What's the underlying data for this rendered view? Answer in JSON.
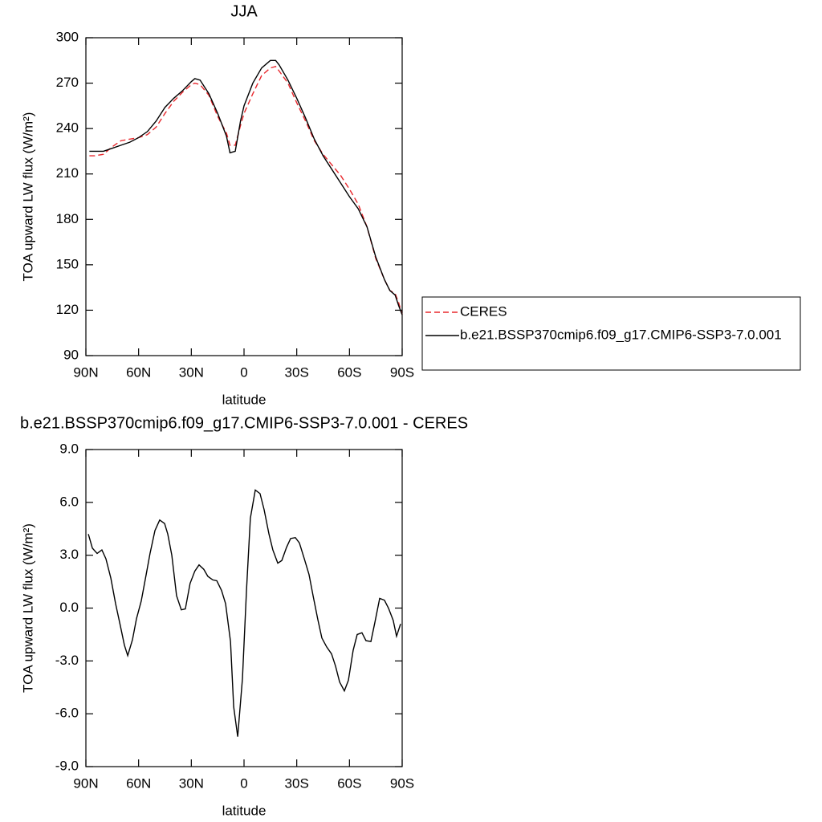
{
  "chart_data": [
    {
      "type": "line",
      "title": "JJA",
      "xlabel": "latitude",
      "ylabel": "TOA upward LW flux (W/m²)",
      "xlim": [
        90,
        -90
      ],
      "xticks": [
        {
          "value": 90,
          "label": "90N"
        },
        {
          "value": 60,
          "label": "60N"
        },
        {
          "value": 30,
          "label": "30N"
        },
        0,
        {
          "value": -30,
          "label": "30S"
        },
        {
          "value": -60,
          "label": "60S"
        },
        {
          "value": -90,
          "label": "90S"
        }
      ],
      "ylim": [
        90,
        300
      ],
      "yticks": [
        90,
        120,
        150,
        180,
        210,
        240,
        270,
        300
      ],
      "legend": "outside-right",
      "x": [
        88,
        85,
        80,
        75,
        70,
        65,
        60,
        55,
        50,
        45,
        40,
        35,
        30,
        28,
        25,
        20,
        15,
        10,
        8,
        5,
        2,
        0,
        -5,
        -10,
        -15,
        -18,
        -20,
        -25,
        -30,
        -35,
        -40,
        -45,
        -50,
        -55,
        -60,
        -65,
        -70,
        -75,
        -80,
        -83,
        -86,
        -88,
        -90
      ],
      "series": [
        {
          "name": "CERES",
          "color": "#e8282d",
          "line_style": "dashed",
          "values": [
            222,
            222,
            223,
            228,
            232,
            233,
            234,
            236,
            241,
            250,
            258,
            264,
            269,
            270,
            269,
            262,
            248,
            237,
            229,
            229,
            242,
            250,
            263,
            275,
            280,
            281,
            278,
            270,
            257,
            245,
            232,
            223,
            216,
            209,
            200,
            190,
            175,
            154,
            140,
            133,
            131,
            125,
            117
          ]
        },
        {
          "name": "b.e21.BSSP370cmip6.f09_g17.CMIP6-SSP3-7.0.001",
          "color": "#000000",
          "line_style": "solid",
          "values": [
            225,
            225,
            225,
            227,
            229,
            231,
            234,
            238,
            245,
            254,
            260,
            265,
            271,
            273,
            272,
            263,
            250,
            235,
            224,
            225,
            245,
            255,
            270,
            280,
            285,
            285,
            282,
            272,
            260,
            247,
            233,
            222,
            213,
            204,
            195,
            187,
            175,
            155,
            140,
            133,
            130,
            123,
            117
          ]
        }
      ]
    },
    {
      "type": "line",
      "title": "b.e21.BSSP370cmip6.f09_g17.CMIP6-SSP3-7.0.001 - CERES",
      "xlabel": "latitude",
      "ylabel": "TOA upward LW flux (W/m²)",
      "xlim": [
        90,
        -90
      ],
      "xticks": [
        {
          "value": 90,
          "label": "90N"
        },
        {
          "value": 60,
          "label": "60N"
        },
        {
          "value": 30,
          "label": "30N"
        },
        0,
        {
          "value": -30,
          "label": "30S"
        },
        {
          "value": -60,
          "label": "60S"
        },
        {
          "value": -90,
          "label": "90S"
        }
      ],
      "ylim": [
        -9,
        9
      ],
      "yticks": [
        {
          "value": -9,
          "label": "-9.0"
        },
        {
          "value": -6,
          "label": "-6.0"
        },
        {
          "value": -3,
          "label": "-3.0"
        },
        {
          "value": 0,
          "label": "0.0"
        },
        {
          "value": 3,
          "label": "3.0"
        },
        {
          "value": 6,
          "label": "6.0"
        },
        {
          "value": 9,
          "label": "9.0"
        }
      ],
      "x": [
        88.6,
        86.3,
        83.6,
        80.9,
        78.6,
        75.8,
        73.1,
        70.4,
        68.1,
        66.2,
        63.5,
        61.2,
        58.5,
        55.7,
        53.5,
        50.7,
        48.0,
        45.2,
        43.4,
        41.1,
        38.4,
        35.7,
        33.4,
        30.7,
        28.0,
        25.6,
        22.9,
        20.6,
        17.8,
        15.5,
        12.8,
        10.5,
        7.7,
        5.9,
        3.6,
        0.9,
        -1.4,
        -3.6,
        -6.4,
        -9.1,
        -11.4,
        -14.2,
        -16.4,
        -19.2,
        -21.5,
        -24.2,
        -26.5,
        -29.2,
        -31.5,
        -34.3,
        -37.0,
        -39.3,
        -42.0,
        -44.3,
        -47.0,
        -49.8,
        -52.1,
        -54.4,
        -57.1,
        -59.4,
        -62.1,
        -64.4,
        -67.1,
        -69.4,
        -72.2,
        -74.5,
        -77.2,
        -79.9,
        -82.2,
        -84.9,
        -86.8,
        -89.1
      ],
      "series": [
        {
          "color": "#000000",
          "line_style": "solid",
          "values": [
            4.2,
            3.4,
            3.1,
            3.3,
            2.8,
            1.7,
            0.25,
            -1.0,
            -2.1,
            -2.7,
            -1.8,
            -0.6,
            0.4,
            1.9,
            3.1,
            4.4,
            5.0,
            4.8,
            4.2,
            3.0,
            0.7,
            -0.1,
            -0.05,
            1.4,
            2.1,
            2.45,
            2.2,
            1.8,
            1.6,
            1.55,
            1.0,
            0.25,
            -1.9,
            -5.6,
            -7.3,
            -4.0,
            1.0,
            5.1,
            6.7,
            6.5,
            5.6,
            4.2,
            3.3,
            2.55,
            2.7,
            3.45,
            3.95,
            4.0,
            3.7,
            2.8,
            1.9,
            0.7,
            -0.65,
            -1.7,
            -2.2,
            -2.6,
            -3.3,
            -4.2,
            -4.7,
            -4.1,
            -2.4,
            -1.5,
            -1.4,
            -1.85,
            -1.9,
            -0.8,
            0.55,
            0.45,
            0.0,
            -0.7,
            -1.6,
            -0.9
          ]
        }
      ]
    }
  ]
}
